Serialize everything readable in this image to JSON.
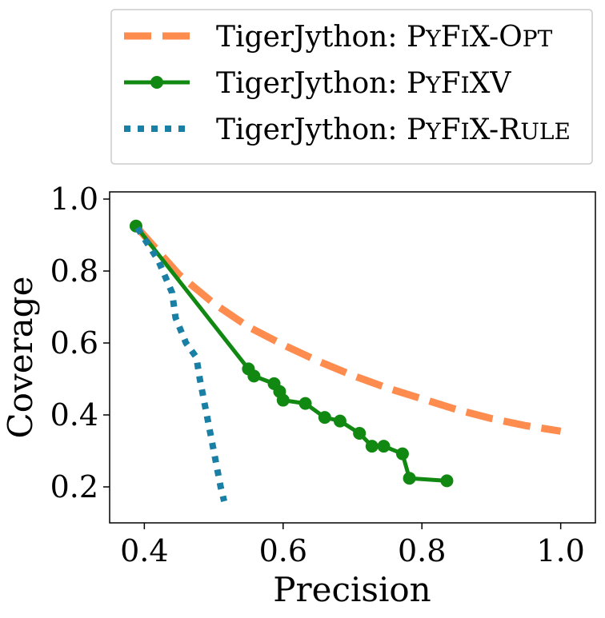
{
  "chart_data": {
    "type": "line",
    "title": "",
    "xlabel": "Precision",
    "ylabel": "Coverage",
    "xlim": [
      0.35,
      1.05
    ],
    "ylim": [
      0.1,
      1.02
    ],
    "xticks": [
      0.4,
      0.6,
      0.8,
      1.0
    ],
    "xtick_labels": [
      "0.4",
      "0.6",
      "0.8",
      "1.0"
    ],
    "yticks": [
      0.2,
      0.4,
      0.6,
      0.8,
      1.0
    ],
    "ytick_labels": [
      "0.2",
      "0.4",
      "0.6",
      "0.8",
      "1.0"
    ],
    "grid": false,
    "legend_position": "above",
    "series": [
      {
        "name": "TigerJython: PyFix-Opt",
        "legend_prefix": "TigerJython: ",
        "legend_parts": [
          [
            "P",
            "big"
          ],
          [
            "Y",
            "small"
          ],
          [
            "F",
            "big"
          ],
          [
            "I",
            "small"
          ],
          [
            "X-O",
            "big"
          ],
          [
            "PT",
            "small"
          ]
        ],
        "style": "dashed",
        "color": "#FF8C4F",
        "x": [
          0.39,
          0.45,
          0.5,
          0.55,
          0.6,
          0.65,
          0.7,
          0.75,
          0.8,
          0.85,
          0.9,
          0.95,
          1.0
        ],
        "y": [
          0.92,
          0.79,
          0.71,
          0.645,
          0.595,
          0.55,
          0.51,
          0.475,
          0.445,
          0.415,
          0.39,
          0.37,
          0.355
        ]
      },
      {
        "name": "TigerJython: PyFixV",
        "legend_prefix": "TigerJython: ",
        "legend_parts": [
          [
            "P",
            "big"
          ],
          [
            "Y",
            "small"
          ],
          [
            "F",
            "big"
          ],
          [
            "I",
            "small"
          ],
          [
            "XV",
            "big"
          ]
        ],
        "style": "solid-marker",
        "color": "#118811",
        "x": [
          0.388,
          0.55,
          0.558,
          0.587,
          0.595,
          0.6,
          0.632,
          0.66,
          0.682,
          0.71,
          0.728,
          0.745,
          0.772,
          0.782,
          0.836
        ],
        "y": [
          0.925,
          0.528,
          0.508,
          0.487,
          0.465,
          0.441,
          0.432,
          0.393,
          0.383,
          0.349,
          0.313,
          0.313,
          0.292,
          0.224,
          0.217
        ]
      },
      {
        "name": "TigerJython: PyFix-Rule",
        "legend_prefix": "TigerJython: ",
        "legend_parts": [
          [
            "P",
            "big"
          ],
          [
            "Y",
            "small"
          ],
          [
            "F",
            "big"
          ],
          [
            "I",
            "small"
          ],
          [
            "X-R",
            "big"
          ],
          [
            "ULE",
            "small"
          ]
        ],
        "style": "dotted",
        "color": "#1A7FA5",
        "x": [
          0.39,
          0.42,
          0.44,
          0.445,
          0.46,
          0.475,
          0.48,
          0.49,
          0.5,
          0.51,
          0.515
        ],
        "y": [
          0.92,
          0.83,
          0.74,
          0.67,
          0.6,
          0.56,
          0.5,
          0.4,
          0.3,
          0.2,
          0.16
        ]
      }
    ]
  }
}
